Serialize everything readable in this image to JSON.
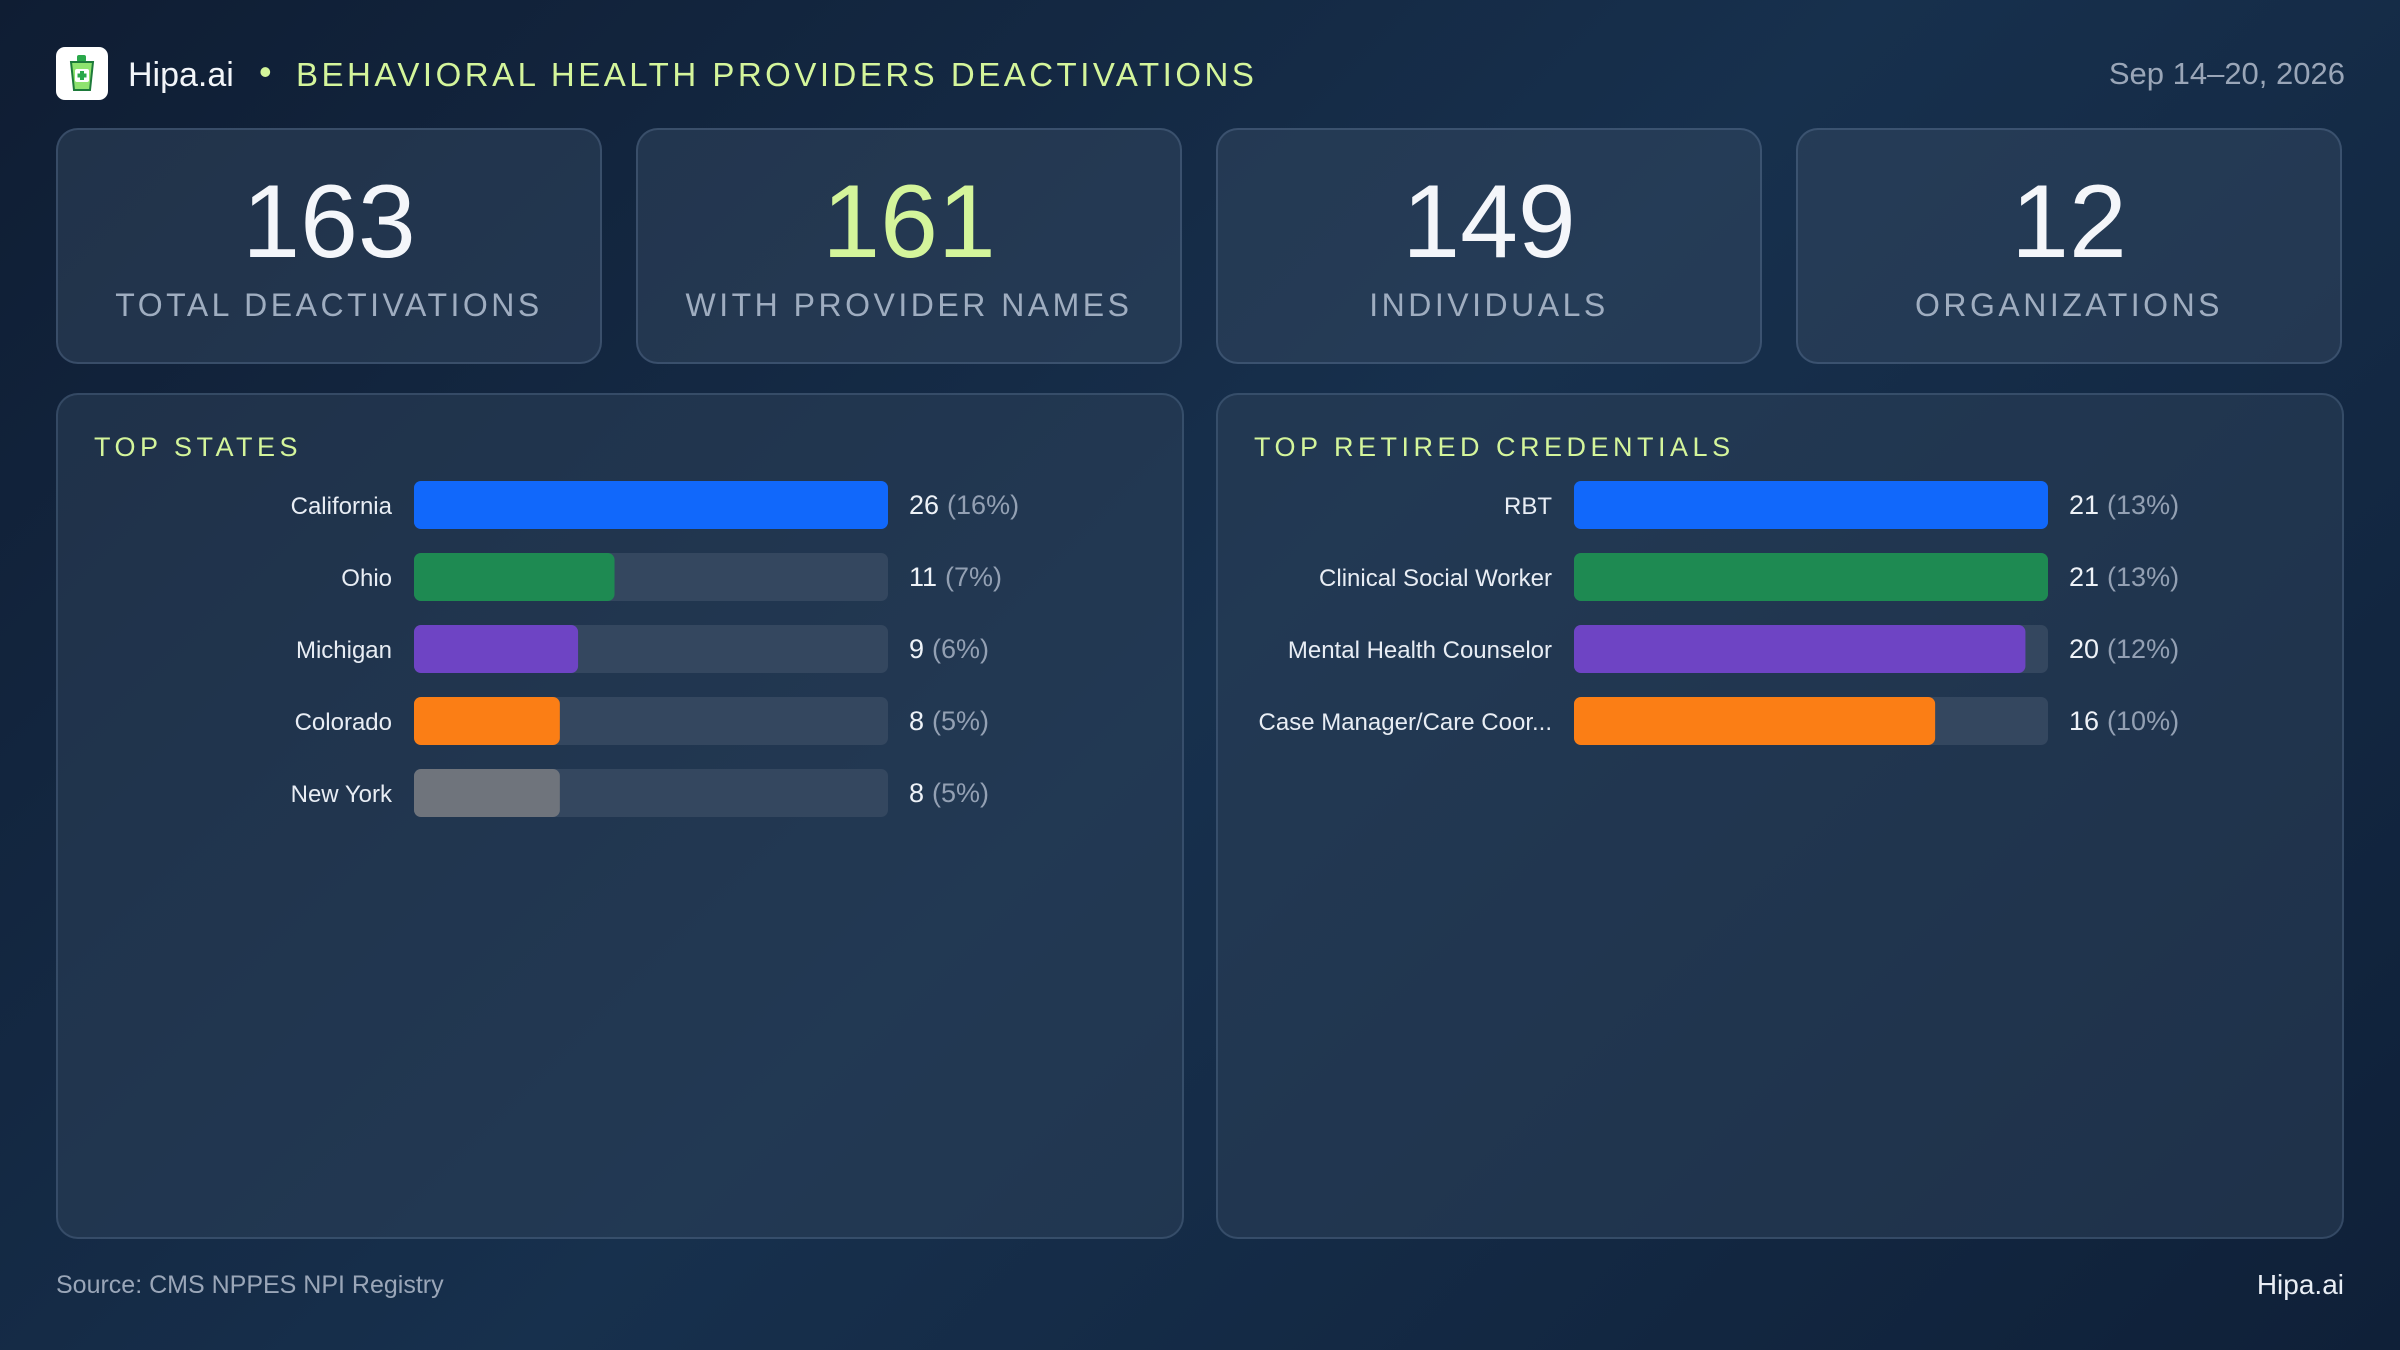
{
  "header": {
    "brand": "Hipa.ai",
    "separator": "•",
    "title": "BEHAVIORAL HEALTH PROVIDERS DEACTIVATIONS",
    "date_range": "Sep 14–20, 2026"
  },
  "stats": [
    {
      "value": "163",
      "label": "TOTAL DEACTIVATIONS"
    },
    {
      "value": "161",
      "label": "WITH PROVIDER NAMES"
    },
    {
      "value": "149",
      "label": "INDIVIDUALS"
    },
    {
      "value": "12",
      "label": "ORGANIZATIONS"
    }
  ],
  "chart_data": [
    {
      "type": "bar",
      "orientation": "horizontal",
      "title": "TOP STATES",
      "categories": [
        "California",
        "Ohio",
        "Michigan",
        "Colorado",
        "New York"
      ],
      "values": [
        26,
        11,
        9,
        8,
        8
      ],
      "percents": [
        "(16%)",
        "(7%)",
        "(6%)",
        "(5%)",
        "(5%)"
      ],
      "colors": [
        "#1168fb",
        "#1e8a52",
        "#6e44c4",
        "#fb7e15",
        "#6f747c"
      ],
      "xlim": [
        0,
        26
      ]
    },
    {
      "type": "bar",
      "orientation": "horizontal",
      "title": "TOP RETIRED CREDENTIALS",
      "categories": [
        "RBT",
        "Clinical Social Worker",
        "Mental Health Counselor",
        "Case Manager/Care Coor..."
      ],
      "values": [
        21,
        21,
        20,
        16
      ],
      "percents": [
        "(13%)",
        "(13%)",
        "(12%)",
        "(10%)"
      ],
      "colors": [
        "#1168fb",
        "#1e8a52",
        "#6e44c4",
        "#fb7e15"
      ],
      "xlim": [
        0,
        21
      ]
    }
  ],
  "footer": {
    "source": "Source: CMS NPPES NPI Registry",
    "brand": "Hipa.ai"
  },
  "colors": {
    "accent": "#d4f59b",
    "track": "#34475f"
  }
}
